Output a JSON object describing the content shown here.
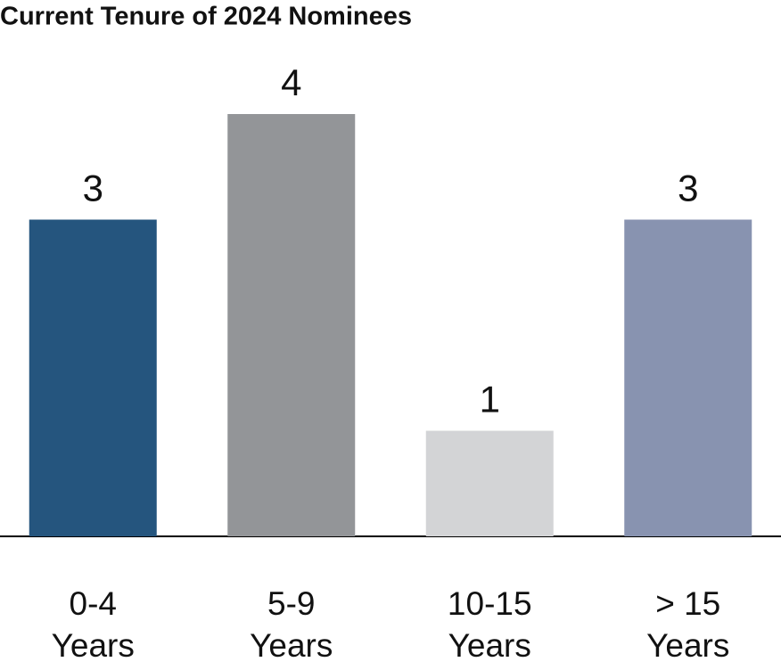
{
  "chart_data": {
    "type": "bar",
    "title": "Current Tenure of 2024 Nominees",
    "categories": [
      [
        "0-4",
        "Years"
      ],
      [
        "5-9",
        "Years"
      ],
      [
        "10-15",
        "Years"
      ],
      [
        "> 15",
        "Years"
      ]
    ],
    "values": [
      3,
      4,
      1,
      3
    ],
    "colors": [
      "#25557e",
      "#939598",
      "#d3d4d6",
      "#8893b0"
    ],
    "ylim": [
      0,
      4
    ]
  }
}
